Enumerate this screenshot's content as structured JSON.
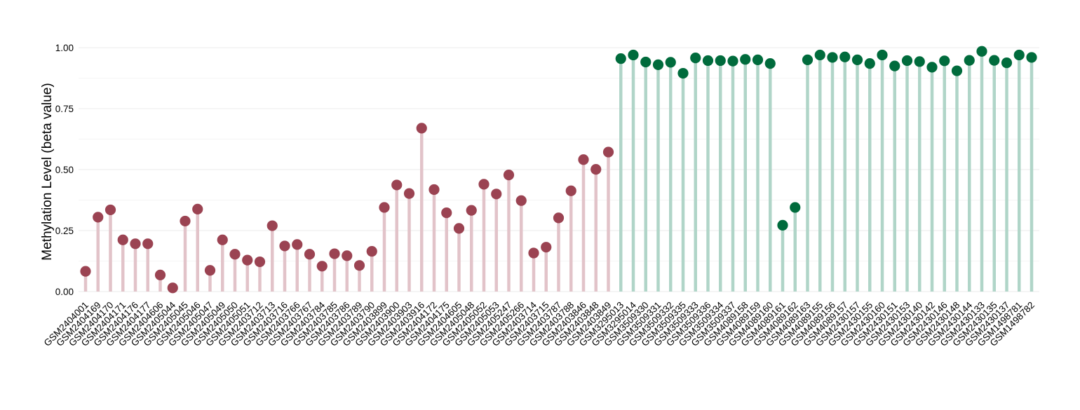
{
  "chart_data": {
    "type": "lollipop",
    "ylabel": "Methylation Level (beta value)",
    "xlabel": "",
    "ylim": [
      0,
      1
    ],
    "yticks": [
      0,
      0.25,
      0.5,
      0.75,
      1
    ],
    "ytick_labels": [
      "0.00",
      "0.25",
      "0.50",
      "0.75",
      "1.00"
    ],
    "grid": true,
    "legend": "none",
    "group_colors": {
      "group1": {
        "point": "#9b4352",
        "stem": "#e2c3c9"
      },
      "group2": {
        "point": "#006b3c",
        "stem": "#b0d5c8"
      }
    },
    "categories": [
      "GSM2404001",
      "GSM2404169",
      "GSM2404170",
      "GSM2404171",
      "GSM2404176",
      "GSM2404177",
      "GSM2404606",
      "GSM2405044",
      "GSM2405045",
      "GSM2405046",
      "GSM2405047",
      "GSM2405049",
      "GSM2405050",
      "GSM2405051",
      "GSM2403712",
      "GSM2403713",
      "GSM2403716",
      "GSM2403766",
      "GSM2403767",
      "GSM2403784",
      "GSM2403785",
      "GSM2403786",
      "GSM2403789",
      "GSM2403790",
      "GSM2403899",
      "GSM2403900",
      "GSM2403903",
      "GSM2403916",
      "GSM2404172",
      "GSM2404175",
      "GSM2404605",
      "GSM2405048",
      "GSM2405052",
      "GSM2405053",
      "GSM2405247",
      "GSM2405266",
      "GSM2403714",
      "GSM2403715",
      "GSM2403787",
      "GSM2403788",
      "GSM2403846",
      "GSM2403848",
      "GSM2403849",
      "GSM3295013",
      "GSM3295014",
      "GSM3509330",
      "GSM3509331",
      "GSM3509332",
      "GSM3509335",
      "GSM3509333",
      "GSM3509336",
      "GSM3509334",
      "GSM3509337",
      "GSM4089158",
      "GSM4089159",
      "GSM4089160",
      "GSM4089161",
      "GSM4089162",
      "GSM4089163",
      "GSM4089155",
      "GSM4089156",
      "GSM4089157",
      "GSM2430157",
      "GSM2430155",
      "GSM2430160",
      "GSM2430151",
      "GSM2430153",
      "GSM2430140",
      "GSM2430142",
      "GSM2430146",
      "GSM2430148",
      "GSM2430144",
      "GSM2430133",
      "GSM2430135",
      "GSM2430137",
      "GSM1498781",
      "GSM1498782"
    ],
    "values": [
      0.083,
      0.305,
      0.335,
      0.212,
      0.196,
      0.196,
      0.068,
      0.015,
      0.289,
      0.338,
      0.087,
      0.212,
      0.153,
      0.129,
      0.122,
      0.27,
      0.187,
      0.193,
      0.153,
      0.104,
      0.155,
      0.147,
      0.107,
      0.165,
      0.345,
      0.437,
      0.402,
      0.67,
      0.418,
      0.323,
      0.259,
      0.333,
      0.44,
      0.4,
      0.478,
      0.373,
      0.158,
      0.182,
      0.302,
      0.413,
      0.541,
      0.501,
      0.572,
      0.955,
      0.97,
      0.941,
      0.93,
      0.94,
      0.895,
      0.958,
      0.947,
      0.947,
      0.945,
      0.952,
      0.95,
      0.935,
      0.272,
      0.345,
      0.95,
      0.97,
      0.96,
      0.962,
      0.95,
      0.935,
      0.97,
      0.925,
      0.947,
      0.943,
      0.92,
      0.946,
      0.905,
      0.948,
      0.985,
      0.948,
      0.938,
      0.97,
      0.96
    ],
    "groups": [
      "group1",
      "group1",
      "group1",
      "group1",
      "group1",
      "group1",
      "group1",
      "group1",
      "group1",
      "group1",
      "group1",
      "group1",
      "group1",
      "group1",
      "group1",
      "group1",
      "group1",
      "group1",
      "group1",
      "group1",
      "group1",
      "group1",
      "group1",
      "group1",
      "group1",
      "group1",
      "group1",
      "group1",
      "group1",
      "group1",
      "group1",
      "group1",
      "group1",
      "group1",
      "group1",
      "group1",
      "group1",
      "group1",
      "group1",
      "group1",
      "group1",
      "group1",
      "group1",
      "group2",
      "group2",
      "group2",
      "group2",
      "group2",
      "group2",
      "group2",
      "group2",
      "group2",
      "group2",
      "group2",
      "group2",
      "group2",
      "group2",
      "group2",
      "group2",
      "group2",
      "group2",
      "group2",
      "group2",
      "group2",
      "group2",
      "group2",
      "group2",
      "group2",
      "group2",
      "group2",
      "group2",
      "group2",
      "group2",
      "group2",
      "group2",
      "group2",
      "group2"
    ]
  }
}
